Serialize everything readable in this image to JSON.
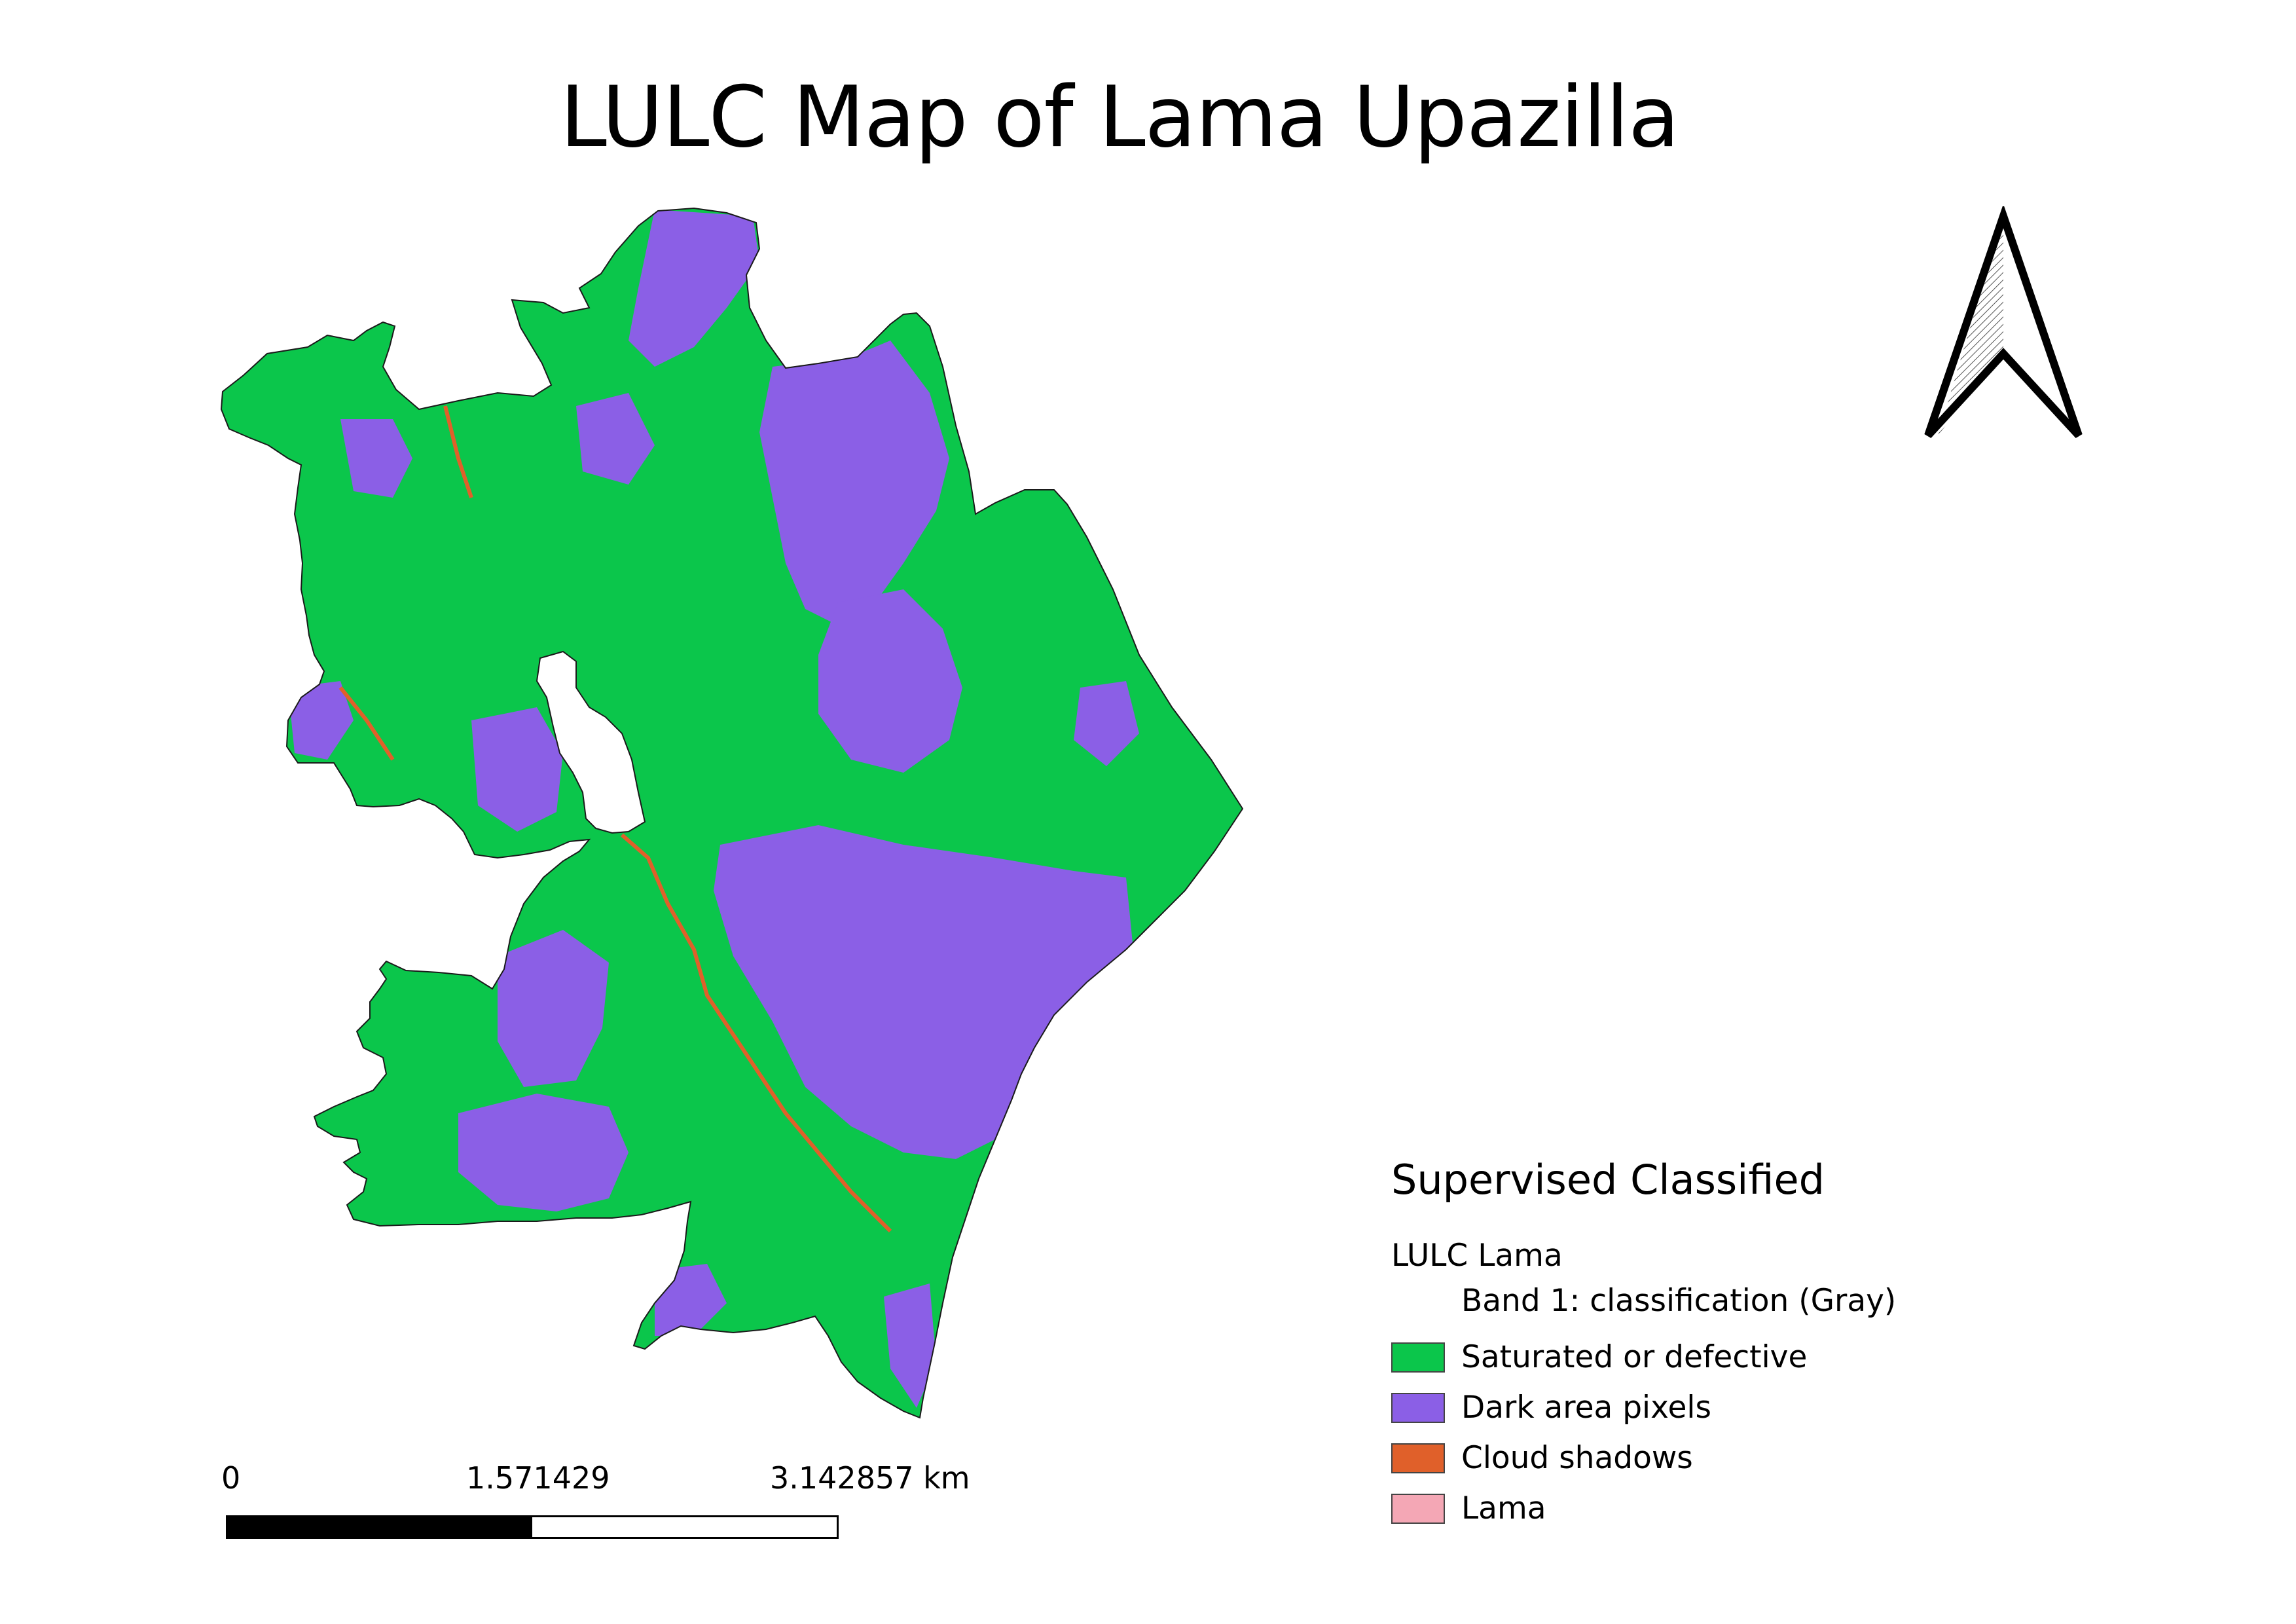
{
  "map": {
    "title": "LULC Map of Lama Upazilla",
    "colors": {
      "saturated": "#0bc64b",
      "dark_area": "#8b5fe6",
      "cloud_shadow": "#e0602a",
      "lama": "#f4a7b5"
    }
  },
  "north_arrow": {
    "icon": "north-arrow-icon"
  },
  "scale_bar": {
    "labels": [
      "0",
      "1.571429",
      "3.142857 km"
    ]
  },
  "legend": {
    "title": "Supervised Classified",
    "layer_name": "LULC Lama",
    "band_label": "Band 1: classification (Gray)",
    "items": [
      {
        "label": "Saturated or defective",
        "color": "#0bc64b"
      },
      {
        "label": "Dark area pixels",
        "color": "#8b5fe6"
      },
      {
        "label": "Cloud shadows",
        "color": "#e0602a"
      },
      {
        "label": "Lama",
        "color": "#f4a7b5"
      }
    ]
  }
}
